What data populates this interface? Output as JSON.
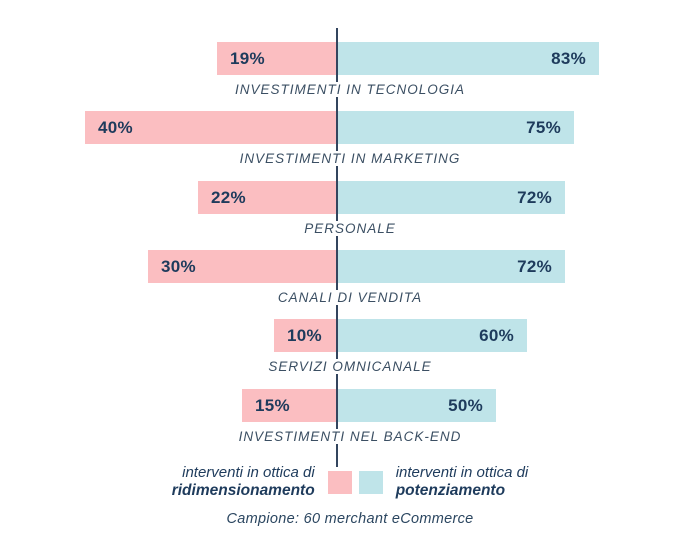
{
  "chart_data": {
    "type": "bar",
    "orientation": "horizontal-diverging",
    "categories": [
      "INVESTIMENTI IN TECNOLOGIA",
      "INVESTIMENTI IN MARKETING",
      "PERSONALE",
      "CANALI DI VENDITA",
      "SERVIZI OMNICANALE",
      "INVESTIMENTI NEL BACK-END"
    ],
    "series": [
      {
        "name": "interventi in ottica di ridimensionamento",
        "side": "left",
        "color": "#FBBEC1",
        "values": [
          19,
          40,
          22,
          30,
          10,
          15
        ]
      },
      {
        "name": "interventi in ottica di potenziamento",
        "side": "right",
        "color": "#BFE4E9",
        "values": [
          83,
          75,
          72,
          72,
          60,
          50
        ]
      }
    ],
    "value_suffix": "%",
    "legend_position": "bottom",
    "grid": false,
    "caption": "Campione: 60 merchant eCommerce"
  },
  "legend": {
    "left": {
      "line1": "interventi in ottica di",
      "line2": "ridimensionamento"
    },
    "right": {
      "line1": "interventi in ottica di",
      "line2": "potenziamento"
    }
  },
  "caption": "Campione: 60 merchant eCommerce",
  "colors": {
    "pink": "#FBBEC1",
    "blue": "#BFE4E9",
    "value_text": "#1E3B5C",
    "label_text": "#3B4F63",
    "axis": "#33455E"
  }
}
